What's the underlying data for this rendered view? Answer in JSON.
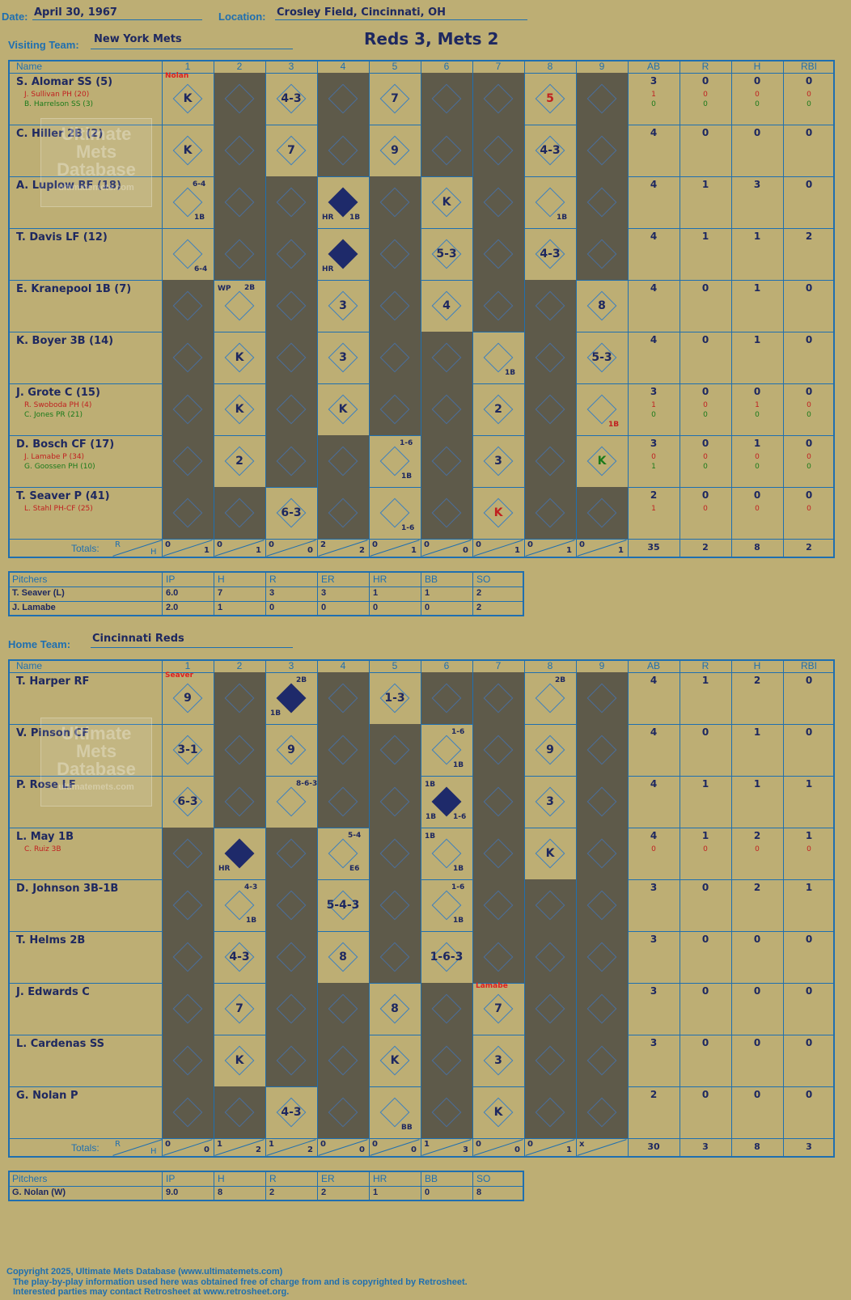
{
  "header": {
    "date_label": "Date:",
    "date": "April 30, 1967",
    "location_label": "Location:",
    "location": "Crosley Field, Cincinnati, OH",
    "visiting_label": "Visiting Team:",
    "visiting_team": "New York Mets",
    "score_title": "Reds 3, Mets 2",
    "home_label": "Home Team:",
    "home_team": "Cincinnati Reds"
  },
  "columns": {
    "name": "Name",
    "innings": [
      "1",
      "2",
      "3",
      "4",
      "5",
      "6",
      "7",
      "8",
      "9"
    ],
    "stats": [
      "AB",
      "R",
      "H",
      "RBI"
    ]
  },
  "watermark": {
    "line1": "Ultimate",
    "line2": "Mets",
    "line3": "Database",
    "line4": "ultimatemets.com"
  },
  "visitors": {
    "players": [
      {
        "name": "S. Alomar SS (5)",
        "subs": [
          {
            "text": "J. Sullivan PH (20)",
            "color": "#c02020"
          },
          {
            "text": "B. Harrelson SS (3)",
            "color": "#1a7a1a"
          }
        ],
        "ab": "3",
        "r": "0",
        "h": "0",
        "rbi": "0",
        "sub_stats": [
          [
            "1",
            "0",
            "0",
            "0"
          ],
          [
            "0",
            "0",
            "0",
            "0"
          ]
        ]
      },
      {
        "name": "C. Hiller 2B (2)",
        "subs": [],
        "ab": "4",
        "r": "0",
        "h": "0",
        "rbi": "0",
        "sub_stats": []
      },
      {
        "name": "A. Luplow RF (18)",
        "subs": [],
        "ab": "4",
        "r": "1",
        "h": "3",
        "rbi": "0",
        "sub_stats": []
      },
      {
        "name": "T. Davis LF (12)",
        "subs": [],
        "ab": "4",
        "r": "1",
        "h": "1",
        "rbi": "2",
        "sub_stats": []
      },
      {
        "name": "E. Kranepool 1B (7)",
        "subs": [],
        "ab": "4",
        "r": "0",
        "h": "1",
        "rbi": "0",
        "sub_stats": []
      },
      {
        "name": "K. Boyer 3B (14)",
        "subs": [],
        "ab": "4",
        "r": "0",
        "h": "1",
        "rbi": "0",
        "sub_stats": []
      },
      {
        "name": "J. Grote C (15)",
        "subs": [
          {
            "text": "R. Swoboda PH (4)",
            "color": "#c02020"
          },
          {
            "text": "C. Jones PR (21)",
            "color": "#1a7a1a"
          }
        ],
        "ab": "3",
        "r": "0",
        "h": "0",
        "rbi": "0",
        "sub_stats": [
          [
            "1",
            "0",
            "1",
            "0"
          ],
          [
            "0",
            "0",
            "0",
            "0"
          ]
        ]
      },
      {
        "name": "D. Bosch CF (17)",
        "subs": [
          {
            "text": "J. Lamabe P (34)",
            "color": "#c02020"
          },
          {
            "text": "G. Goossen PH (10)",
            "color": "#1a7a1a"
          }
        ],
        "ab": "3",
        "r": "0",
        "h": "1",
        "rbi": "0",
        "sub_stats": [
          [
            "0",
            "0",
            "0",
            "0"
          ],
          [
            "1",
            "0",
            "0",
            "0"
          ]
        ]
      },
      {
        "name": "T. Seaver P (41)",
        "subs": [
          {
            "text": "L. Stahl PH-CF (25)",
            "color": "#c02020"
          }
        ],
        "ab": "2",
        "r": "0",
        "h": "0",
        "rbi": "0",
        "sub_stats": [
          [
            "1",
            "0",
            "0",
            "0"
          ]
        ]
      }
    ],
    "plays": [
      {
        "row": 0,
        "inn": 0,
        "text": "K"
      },
      {
        "row": 0,
        "inn": 2,
        "text": "4-3"
      },
      {
        "row": 0,
        "inn": 4,
        "text": "7"
      },
      {
        "row": 0,
        "inn": 7,
        "text": "5",
        "color": "#c02020"
      },
      {
        "row": 1,
        "inn": 0,
        "text": "K"
      },
      {
        "row": 1,
        "inn": 2,
        "text": "7"
      },
      {
        "row": 1,
        "inn": 4,
        "text": "9"
      },
      {
        "row": 1,
        "inn": 7,
        "text": "4-3"
      },
      {
        "row": 2,
        "inn": 0,
        "text": ""
      },
      {
        "row": 2,
        "inn": 3,
        "text": ""
      },
      {
        "row": 2,
        "inn": 5,
        "text": "K"
      },
      {
        "row": 2,
        "inn": 7,
        "text": ""
      },
      {
        "row": 3,
        "inn": 0,
        "text": ""
      },
      {
        "row": 3,
        "inn": 3,
        "text": ""
      },
      {
        "row": 3,
        "inn": 5,
        "text": "5-3"
      },
      {
        "row": 3,
        "inn": 7,
        "text": "4-3"
      },
      {
        "row": 4,
        "inn": 1,
        "text": ""
      },
      {
        "row": 4,
        "inn": 3,
        "text": "3"
      },
      {
        "row": 4,
        "inn": 5,
        "text": "4"
      },
      {
        "row": 4,
        "inn": 8,
        "text": "8"
      },
      {
        "row": 5,
        "inn": 1,
        "text": "K"
      },
      {
        "row": 5,
        "inn": 3,
        "text": "3"
      },
      {
        "row": 5,
        "inn": 6,
        "text": ""
      },
      {
        "row": 5,
        "inn": 8,
        "text": "5-3"
      },
      {
        "row": 6,
        "inn": 1,
        "text": "K"
      },
      {
        "row": 6,
        "inn": 3,
        "text": "K"
      },
      {
        "row": 6,
        "inn": 6,
        "text": "2"
      },
      {
        "row": 6,
        "inn": 8,
        "text": ""
      },
      {
        "row": 7,
        "inn": 1,
        "text": "2"
      },
      {
        "row": 7,
        "inn": 4,
        "text": ""
      },
      {
        "row": 7,
        "inn": 6,
        "text": "3"
      },
      {
        "row": 7,
        "inn": 8,
        "text": "K",
        "color": "#1a7a1a"
      },
      {
        "row": 8,
        "inn": 2,
        "text": "6-3"
      },
      {
        "row": 8,
        "inn": 4,
        "text": ""
      },
      {
        "row": 8,
        "inn": 6,
        "text": "K",
        "color": "#c02020"
      }
    ],
    "notes": [
      {
        "row": 0,
        "inn": 0,
        "pos": "top",
        "text": "Nolan",
        "color": "#e02020"
      },
      {
        "row": 2,
        "inn": 0,
        "pos": "tr",
        "text": "6-4"
      },
      {
        "row": 2,
        "inn": 0,
        "pos": "br",
        "text": "1B"
      },
      {
        "row": 2,
        "inn": 3,
        "pos": "bl",
        "text": "HR"
      },
      {
        "row": 2,
        "inn": 3,
        "pos": "br",
        "text": "1B"
      },
      {
        "row": 2,
        "inn": 7,
        "pos": "br",
        "text": "1B"
      },
      {
        "row": 3,
        "inn": 0,
        "pos": "br",
        "text": "6-4"
      },
      {
        "row": 3,
        "inn": 3,
        "pos": "bl",
        "text": "HR"
      },
      {
        "row": 4,
        "inn": 1,
        "pos": "tl",
        "text": "WP"
      },
      {
        "row": 4,
        "inn": 1,
        "pos": "tr",
        "text": "2B"
      },
      {
        "row": 5,
        "inn": 6,
        "pos": "br",
        "text": "1B"
      },
      {
        "row": 6,
        "inn": 8,
        "pos": "br",
        "text": "1B",
        "color": "#c02020"
      },
      {
        "row": 7,
        "inn": 4,
        "pos": "tr",
        "text": "1-6"
      },
      {
        "row": 7,
        "inn": 4,
        "pos": "br",
        "text": "1B"
      },
      {
        "row": 8,
        "inn": 4,
        "pos": "br",
        "text": "1-6"
      }
    ],
    "filled": [
      {
        "row": 2,
        "inn": 3
      },
      {
        "row": 3,
        "inn": 3
      }
    ],
    "totals_label": "Totals:",
    "totals": [
      [
        "0",
        "1"
      ],
      [
        "0",
        "1"
      ],
      [
        "0",
        "0"
      ],
      [
        "2",
        "2"
      ],
      [
        "0",
        "1"
      ],
      [
        "0",
        "0"
      ],
      [
        "0",
        "1"
      ],
      [
        "0",
        "1"
      ],
      [
        "0",
        "1"
      ]
    ],
    "totals_stats": [
      "35",
      "2",
      "8",
      "2"
    ],
    "pitchers_header": [
      "Pitchers",
      "IP",
      "H",
      "R",
      "ER",
      "HR",
      "BB",
      "SO"
    ],
    "pitchers": [
      [
        "T. Seaver (L)",
        "6.0",
        "7",
        "3",
        "3",
        "1",
        "1",
        "2"
      ],
      [
        "J. Lamabe",
        "2.0",
        "1",
        "0",
        "0",
        "0",
        "0",
        "2"
      ]
    ]
  },
  "home": {
    "players": [
      {
        "name": "T. Harper RF",
        "subs": [],
        "ab": "4",
        "r": "1",
        "h": "2",
        "rbi": "0",
        "sub_stats": []
      },
      {
        "name": "V. Pinson CF",
        "subs": [],
        "ab": "4",
        "r": "0",
        "h": "1",
        "rbi": "0",
        "sub_stats": []
      },
      {
        "name": "P. Rose LF",
        "subs": [],
        "ab": "4",
        "r": "1",
        "h": "1",
        "rbi": "1",
        "sub_stats": []
      },
      {
        "name": "L. May 1B",
        "subs": [
          {
            "text": "C. Ruiz 3B",
            "color": "#c02020"
          }
        ],
        "ab": "4",
        "r": "1",
        "h": "2",
        "rbi": "1",
        "sub_stats": [
          [
            "0",
            "0",
            "0",
            "0"
          ]
        ]
      },
      {
        "name": "D. Johnson 3B-1B",
        "subs": [],
        "ab": "3",
        "r": "0",
        "h": "2",
        "rbi": "1",
        "sub_stats": []
      },
      {
        "name": "T. Helms 2B",
        "subs": [],
        "ab": "3",
        "r": "0",
        "h": "0",
        "rbi": "0",
        "sub_stats": []
      },
      {
        "name": "J. Edwards C",
        "subs": [],
        "ab": "3",
        "r": "0",
        "h": "0",
        "rbi": "0",
        "sub_stats": []
      },
      {
        "name": "L. Cardenas SS",
        "subs": [],
        "ab": "3",
        "r": "0",
        "h": "0",
        "rbi": "0",
        "sub_stats": []
      },
      {
        "name": "G. Nolan P",
        "subs": [],
        "ab": "2",
        "r": "0",
        "h": "0",
        "rbi": "0",
        "sub_stats": []
      }
    ],
    "plays": [
      {
        "row": 0,
        "inn": 0,
        "text": "9"
      },
      {
        "row": 0,
        "inn": 2,
        "text": ""
      },
      {
        "row": 0,
        "inn": 4,
        "text": "1-3"
      },
      {
        "row": 0,
        "inn": 7,
        "text": ""
      },
      {
        "row": 1,
        "inn": 0,
        "text": "3-1"
      },
      {
        "row": 1,
        "inn": 2,
        "text": "9"
      },
      {
        "row": 1,
        "inn": 5,
        "text": ""
      },
      {
        "row": 1,
        "inn": 7,
        "text": "9"
      },
      {
        "row": 2,
        "inn": 0,
        "text": "6-3"
      },
      {
        "row": 2,
        "inn": 2,
        "text": ""
      },
      {
        "row": 2,
        "inn": 5,
        "text": ""
      },
      {
        "row": 2,
        "inn": 7,
        "text": "3"
      },
      {
        "row": 3,
        "inn": 1,
        "text": ""
      },
      {
        "row": 3,
        "inn": 3,
        "text": ""
      },
      {
        "row": 3,
        "inn": 5,
        "text": ""
      },
      {
        "row": 3,
        "inn": 7,
        "text": "K"
      },
      {
        "row": 4,
        "inn": 1,
        "text": ""
      },
      {
        "row": 4,
        "inn": 3,
        "text": "5-4-3"
      },
      {
        "row": 4,
        "inn": 5,
        "text": ""
      },
      {
        "row": 5,
        "inn": 1,
        "text": "4-3"
      },
      {
        "row": 5,
        "inn": 3,
        "text": "8"
      },
      {
        "row": 5,
        "inn": 5,
        "text": "1-6-3"
      },
      {
        "row": 6,
        "inn": 1,
        "text": "7"
      },
      {
        "row": 6,
        "inn": 4,
        "text": "8"
      },
      {
        "row": 6,
        "inn": 6,
        "text": "7"
      },
      {
        "row": 7,
        "inn": 1,
        "text": "K"
      },
      {
        "row": 7,
        "inn": 4,
        "text": "K"
      },
      {
        "row": 7,
        "inn": 6,
        "text": "3"
      },
      {
        "row": 8,
        "inn": 2,
        "text": "4-3"
      },
      {
        "row": 8,
        "inn": 4,
        "text": ""
      },
      {
        "row": 8,
        "inn": 6,
        "text": "K"
      }
    ],
    "notes": [
      {
        "row": 0,
        "inn": 0,
        "pos": "top",
        "text": "Seaver",
        "color": "#e02020"
      },
      {
        "row": 0,
        "inn": 2,
        "pos": "tr",
        "text": "2B"
      },
      {
        "row": 0,
        "inn": 2,
        "pos": "bl",
        "text": "1B"
      },
      {
        "row": 0,
        "inn": 7,
        "pos": "tr",
        "text": "2B"
      },
      {
        "row": 1,
        "inn": 5,
        "pos": "tr",
        "text": "1-6"
      },
      {
        "row": 1,
        "inn": 5,
        "pos": "br",
        "text": "1B"
      },
      {
        "row": 2,
        "inn": 2,
        "pos": "tr",
        "text": "8-6-3"
      },
      {
        "row": 2,
        "inn": 5,
        "pos": "tl",
        "text": "1B"
      },
      {
        "row": 2,
        "inn": 5,
        "pos": "bl",
        "text": "1B"
      },
      {
        "row": 2,
        "inn": 5,
        "pos": "br",
        "text": "1-6"
      },
      {
        "row": 3,
        "inn": 1,
        "pos": "bl",
        "text": "HR"
      },
      {
        "row": 3,
        "inn": 3,
        "pos": "tr",
        "text": "5-4"
      },
      {
        "row": 3,
        "inn": 3,
        "pos": "br",
        "text": "E6"
      },
      {
        "row": 3,
        "inn": 5,
        "pos": "tl",
        "text": "1B"
      },
      {
        "row": 3,
        "inn": 5,
        "pos": "br",
        "text": "1B"
      },
      {
        "row": 4,
        "inn": 1,
        "pos": "tr",
        "text": "4-3"
      },
      {
        "row": 4,
        "inn": 1,
        "pos": "br",
        "text": "1B"
      },
      {
        "row": 4,
        "inn": 5,
        "pos": "tr",
        "text": "1-6"
      },
      {
        "row": 4,
        "inn": 5,
        "pos": "br",
        "text": "1B"
      },
      {
        "row": 6,
        "inn": 6,
        "pos": "top",
        "text": "Lamabe",
        "color": "#e02020"
      },
      {
        "row": 8,
        "inn": 4,
        "pos": "br",
        "text": "BB"
      }
    ],
    "filled": [
      {
        "row": 0,
        "inn": 2
      },
      {
        "row": 2,
        "inn": 5
      },
      {
        "row": 3,
        "inn": 1
      }
    ],
    "totals_label": "Totals:",
    "totals": [
      [
        "0",
        "0"
      ],
      [
        "1",
        "2"
      ],
      [
        "1",
        "2"
      ],
      [
        "0",
        "0"
      ],
      [
        "0",
        "0"
      ],
      [
        "1",
        "3"
      ],
      [
        "0",
        "0"
      ],
      [
        "0",
        "1"
      ],
      [
        "x",
        ""
      ]
    ],
    "totals_stats": [
      "30",
      "3",
      "8",
      "3"
    ],
    "pitchers_header": [
      "Pitchers",
      "IP",
      "H",
      "R",
      "ER",
      "HR",
      "BB",
      "SO"
    ],
    "pitchers": [
      [
        "G. Nolan (W)",
        "9.0",
        "8",
        "2",
        "2",
        "1",
        "0",
        "8"
      ]
    ]
  },
  "footer": {
    "line1": "Copyright 2025, Ultimate Mets Database (www.ultimatemets.com)",
    "line2": "The play-by-play information used here was obtained free of charge from and is copyrighted by Retrosheet.",
    "line3": "Interested parties may contact Retrosheet at www.retrosheet.org."
  },
  "totals_r": "R",
  "totals_h": "H"
}
